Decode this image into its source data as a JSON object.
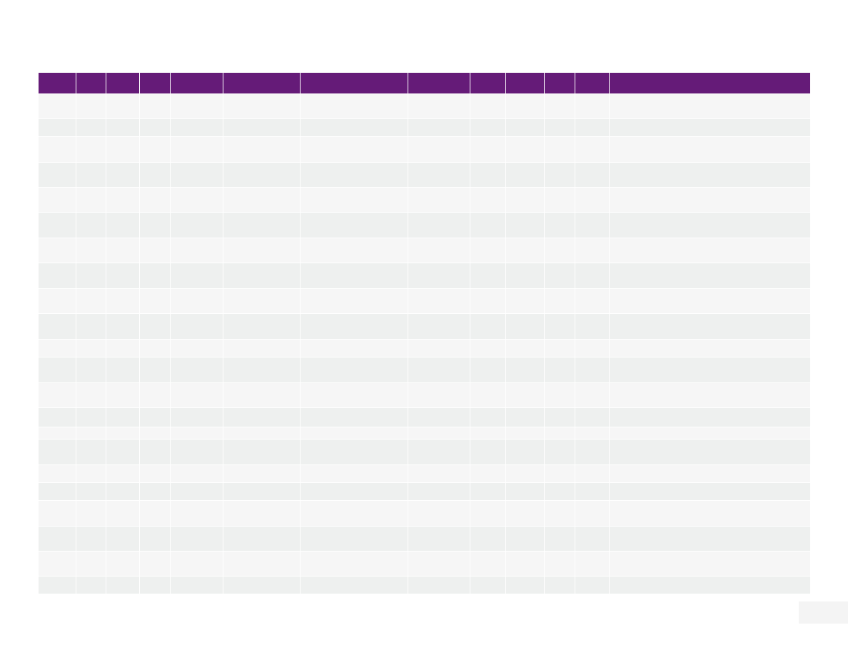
{
  "theme": {
    "header_bg": "#651b78",
    "row_light": "#f6f6f6",
    "row_dark": "#eef0ef",
    "page_box_bg": "#f4f4f4"
  },
  "table": {
    "columns": [
      "",
      "",
      "",
      "",
      "",
      "",
      "",
      "",
      "",
      "",
      "",
      "",
      ""
    ],
    "rows": [
      [
        "",
        "",
        "",
        "",
        "",
        "",
        "",
        "",
        "",
        "",
        "",
        "",
        ""
      ],
      [
        "",
        "",
        "",
        "",
        "",
        "",
        "",
        "",
        "",
        "",
        "",
        "",
        ""
      ],
      [
        "",
        "",
        "",
        "",
        "",
        "",
        "",
        "",
        "",
        "",
        "",
        "",
        ""
      ],
      [
        "",
        "",
        "",
        "",
        "",
        "",
        "",
        "",
        "",
        "",
        "",
        "",
        ""
      ],
      [
        "",
        "",
        "",
        "",
        "",
        "",
        "",
        "",
        "",
        "",
        "",
        "",
        ""
      ],
      [
        "",
        "",
        "",
        "",
        "",
        "",
        "",
        "",
        "",
        "",
        "",
        "",
        ""
      ],
      [
        "",
        "",
        "",
        "",
        "",
        "",
        "",
        "",
        "",
        "",
        "",
        "",
        ""
      ],
      [
        "",
        "",
        "",
        "",
        "",
        "",
        "",
        "",
        "",
        "",
        "",
        "",
        ""
      ],
      [
        "",
        "",
        "",
        "",
        "",
        "",
        "",
        "",
        "",
        "",
        "",
        "",
        ""
      ],
      [
        "",
        "",
        "",
        "",
        "",
        "",
        "",
        "",
        "",
        "",
        "",
        "",
        ""
      ],
      [
        "",
        "",
        "",
        "",
        "",
        "",
        "",
        "",
        "",
        "",
        "",
        "",
        ""
      ],
      [
        "",
        "",
        "",
        "",
        "",
        "",
        "",
        "",
        "",
        "",
        "",
        "",
        ""
      ],
      [
        "",
        "",
        "",
        "",
        "",
        "",
        "",
        "",
        "",
        "",
        "",
        "",
        ""
      ],
      [
        "",
        "",
        "",
        "",
        "",
        "",
        "",
        "",
        "",
        "",
        "",
        "",
        ""
      ],
      [
        "",
        "",
        "",
        "",
        "",
        "",
        "",
        "",
        "",
        "",
        "",
        "",
        ""
      ],
      [
        "",
        "",
        "",
        "",
        "",
        "",
        "",
        "",
        "",
        "",
        "",
        "",
        ""
      ],
      [
        "",
        "",
        "",
        "",
        "",
        "",
        "",
        "",
        "",
        "",
        "",
        "",
        ""
      ],
      [
        "",
        "",
        "",
        "",
        "",
        "",
        "",
        "",
        "",
        "",
        "",
        "",
        ""
      ],
      [
        "",
        "",
        "",
        "",
        "",
        "",
        "",
        "",
        "",
        "",
        "",
        "",
        ""
      ],
      [
        "",
        "",
        "",
        "",
        "",
        "",
        "",
        "",
        "",
        "",
        "",
        "",
        ""
      ],
      [
        "",
        "",
        "",
        "",
        "",
        "",
        "",
        "",
        "",
        "",
        "",
        "",
        ""
      ],
      [
        "",
        "",
        "",
        "",
        "",
        "",
        "",
        "",
        "",
        "",
        "",
        "",
        ""
      ]
    ]
  },
  "page_box": {
    "label": ""
  }
}
